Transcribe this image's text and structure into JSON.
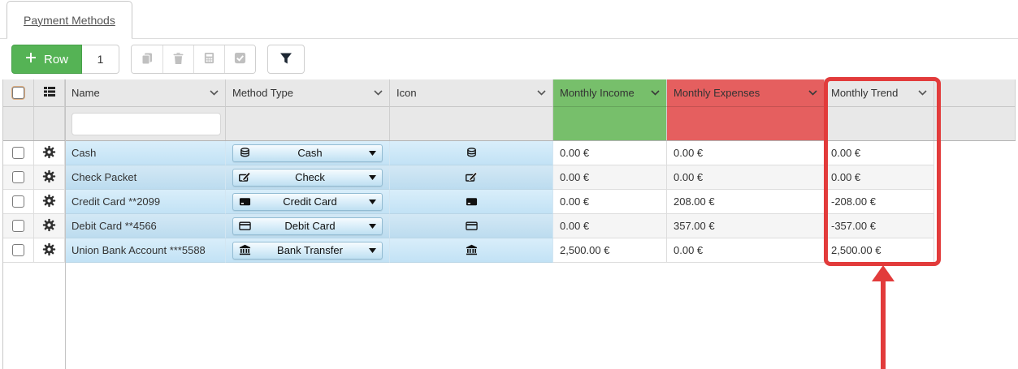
{
  "tab": {
    "label": "Payment Methods"
  },
  "toolbar": {
    "add_row_label": "Row",
    "row_count": "1",
    "icon_buttons": [
      "copy-icon",
      "trash-icon",
      "calculator-icon",
      "check-square-icon",
      "filter-icon"
    ]
  },
  "table": {
    "columns": {
      "name": "Name",
      "method_type": "Method Type",
      "icon": "Icon",
      "income": "Monthly Income",
      "expenses": "Monthly Expenses",
      "trend": "Monthly Trend"
    },
    "name_filter_value": "",
    "rows": [
      {
        "name": "Cash",
        "method_type": "Cash",
        "icon": "coins",
        "income": "0.00 €",
        "expenses": "0.00 €",
        "trend": "0.00 €"
      },
      {
        "name": "Check Packet",
        "method_type": "Check",
        "icon": "money-check",
        "income": "0.00 €",
        "expenses": "0.00 €",
        "trend": "0.00 €"
      },
      {
        "name": "Credit Card **2099",
        "method_type": "Credit Card",
        "icon": "credit-card",
        "income": "0.00 €",
        "expenses": "208.00 €",
        "trend": "-208.00 €"
      },
      {
        "name": "Debit Card **4566",
        "method_type": "Debit Card",
        "icon": "debit-card",
        "income": "0.00 €",
        "expenses": "357.00 €",
        "trend": "-357.00 €"
      },
      {
        "name": "Union Bank Account ***5588",
        "method_type": "Bank Transfer",
        "icon": "bank",
        "income": "2,500.00 €",
        "expenses": "0.00 €",
        "trend": "2,500.00 €"
      }
    ]
  },
  "annotation": {
    "highlighted_column": "Monthly Trend"
  },
  "colors": {
    "add_button_green": "#55b355",
    "income_header_green": "#77bf6b",
    "expenses_header_red": "#e55f5f",
    "annotation_red": "#e23b3b",
    "row_blue_top": "#d9eefa",
    "row_blue_bottom": "#c2e2f5"
  }
}
